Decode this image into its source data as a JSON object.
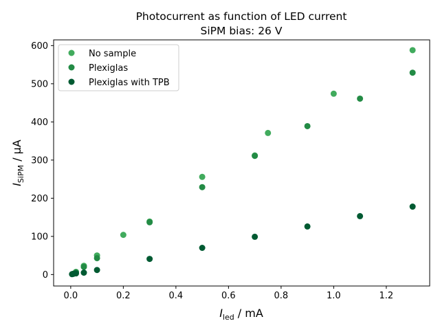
{
  "chart_data": {
    "type": "scatter",
    "title": "Photocurrent as function of LED current",
    "subtitle": "SiPM bias: 26 V",
    "xlabel": {
      "main": "I",
      "sub": "led",
      "unit": " / mA"
    },
    "ylabel": {
      "main": "I",
      "sub": "SiPM",
      "unit": " / μA"
    },
    "xlim": [
      -0.065,
      1.365
    ],
    "ylim": [
      -30,
      615
    ],
    "xticks": [
      0.0,
      0.2,
      0.4,
      0.6,
      0.8,
      1.0,
      1.2
    ],
    "xtick_labels": [
      "0.0",
      "0.2",
      "0.4",
      "0.6",
      "0.8",
      "1.0",
      "1.2"
    ],
    "yticks": [
      0,
      100,
      200,
      300,
      400,
      500,
      600
    ],
    "ytick_labels": [
      "0",
      "100",
      "200",
      "300",
      "400",
      "500",
      "600"
    ],
    "grid": false,
    "legend_position": "upper-left",
    "series": [
      {
        "name": "No sample",
        "color": "#41ab5d",
        "points": [
          [
            0.01,
            2
          ],
          [
            0.02,
            7
          ],
          [
            0.05,
            23
          ],
          [
            0.1,
            50
          ],
          [
            0.2,
            104
          ],
          [
            0.3,
            139
          ],
          [
            0.5,
            256
          ],
          [
            0.7,
            312
          ],
          [
            0.75,
            371
          ],
          [
            1.0,
            474
          ],
          [
            1.3,
            588
          ]
        ]
      },
      {
        "name": "Plexiglas",
        "color": "#238b45",
        "points": [
          [
            0.01,
            2
          ],
          [
            0.02,
            6
          ],
          [
            0.05,
            20
          ],
          [
            0.1,
            43
          ],
          [
            0.3,
            137
          ],
          [
            0.5,
            229
          ],
          [
            0.7,
            311
          ],
          [
            0.9,
            389
          ],
          [
            1.1,
            461
          ],
          [
            1.3,
            529
          ]
        ]
      },
      {
        "name": "Plexiglas with TPB",
        "color": "#005a32",
        "points": [
          [
            0.005,
            1
          ],
          [
            0.01,
            2
          ],
          [
            0.02,
            3
          ],
          [
            0.05,
            5
          ],
          [
            0.1,
            12
          ],
          [
            0.3,
            41
          ],
          [
            0.5,
            70
          ],
          [
            0.7,
            99
          ],
          [
            0.9,
            126
          ],
          [
            1.1,
            153
          ],
          [
            1.3,
            178
          ]
        ]
      }
    ]
  }
}
